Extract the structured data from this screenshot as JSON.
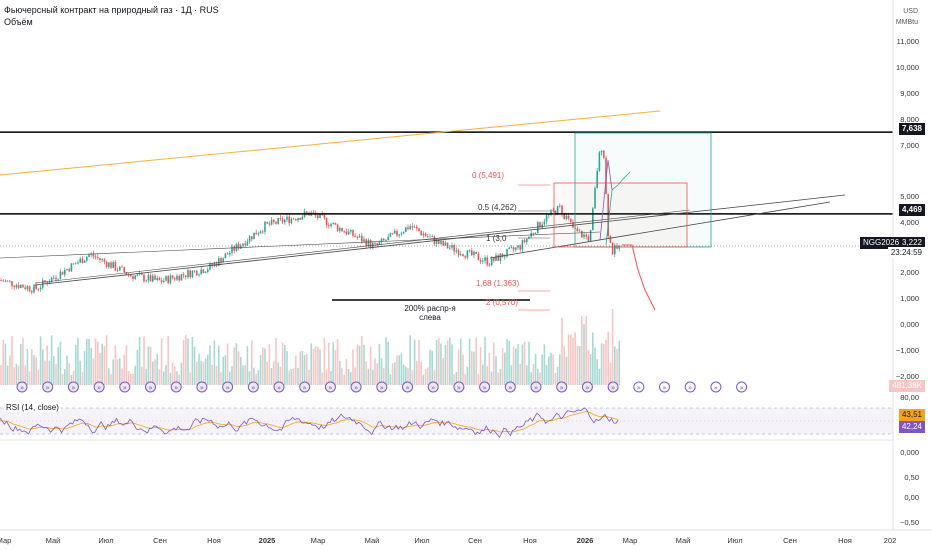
{
  "header": {
    "title": "Фьючерсный контракт на природный газ · 1Д · RUS",
    "volume_label": "Объём"
  },
  "axis": {
    "currency": "USD",
    "unit": "MMBtu"
  },
  "rsi": {
    "label": "RSI (14, close)",
    "value_orange": "43,51",
    "value_purple": "42,24",
    "ticks": [
      "80,00",
      "0,000",
      "0,50",
      "0,00",
      "−0,50"
    ]
  },
  "volume_value": "481,38K",
  "ticker": "NGG2026",
  "last_price": "3,222",
  "countdown": "23:24:59",
  "tag_7638": "7,638",
  "tag_4469": "4,469",
  "fib": {
    "f0": "0 (5,491)",
    "f05": "0.5 (4,262)",
    "f1": "1 (3,0",
    "f168": "1,68 (1,363)",
    "f2": "2 (0,570)"
  },
  "annotation": {
    "line1": "200% распр-я",
    "line2": "слева"
  },
  "colors": {
    "up": "#26a69a",
    "down": "#ef5350",
    "rsi": "#7e57c2",
    "rsi_ma": "#f7a21b",
    "trend_orange": "#f5b041",
    "box_green": "#26a69a",
    "box_red": "#ef5350"
  },
  "chart_data": {
    "type": "candlestick",
    "price_ticks": [
      "11,000",
      "10,000",
      "9,000",
      "8,000",
      "7,000",
      "5,000",
      "4,000",
      "2,000",
      "1,000",
      "0,000",
      "−1,000",
      "−2,000"
    ],
    "x_ticks": [
      "Мар",
      "Май",
      "Июл",
      "Сен",
      "Ноя",
      "2025",
      "Мар",
      "Май",
      "Июл",
      "Сен",
      "Ноя",
      "2026",
      "Мар",
      "Май",
      "Июл",
      "Сен",
      "Ноя",
      "202"
    ],
    "horizontal_levels": [
      7.638,
      4.469
    ],
    "last_price": 3.222
  }
}
